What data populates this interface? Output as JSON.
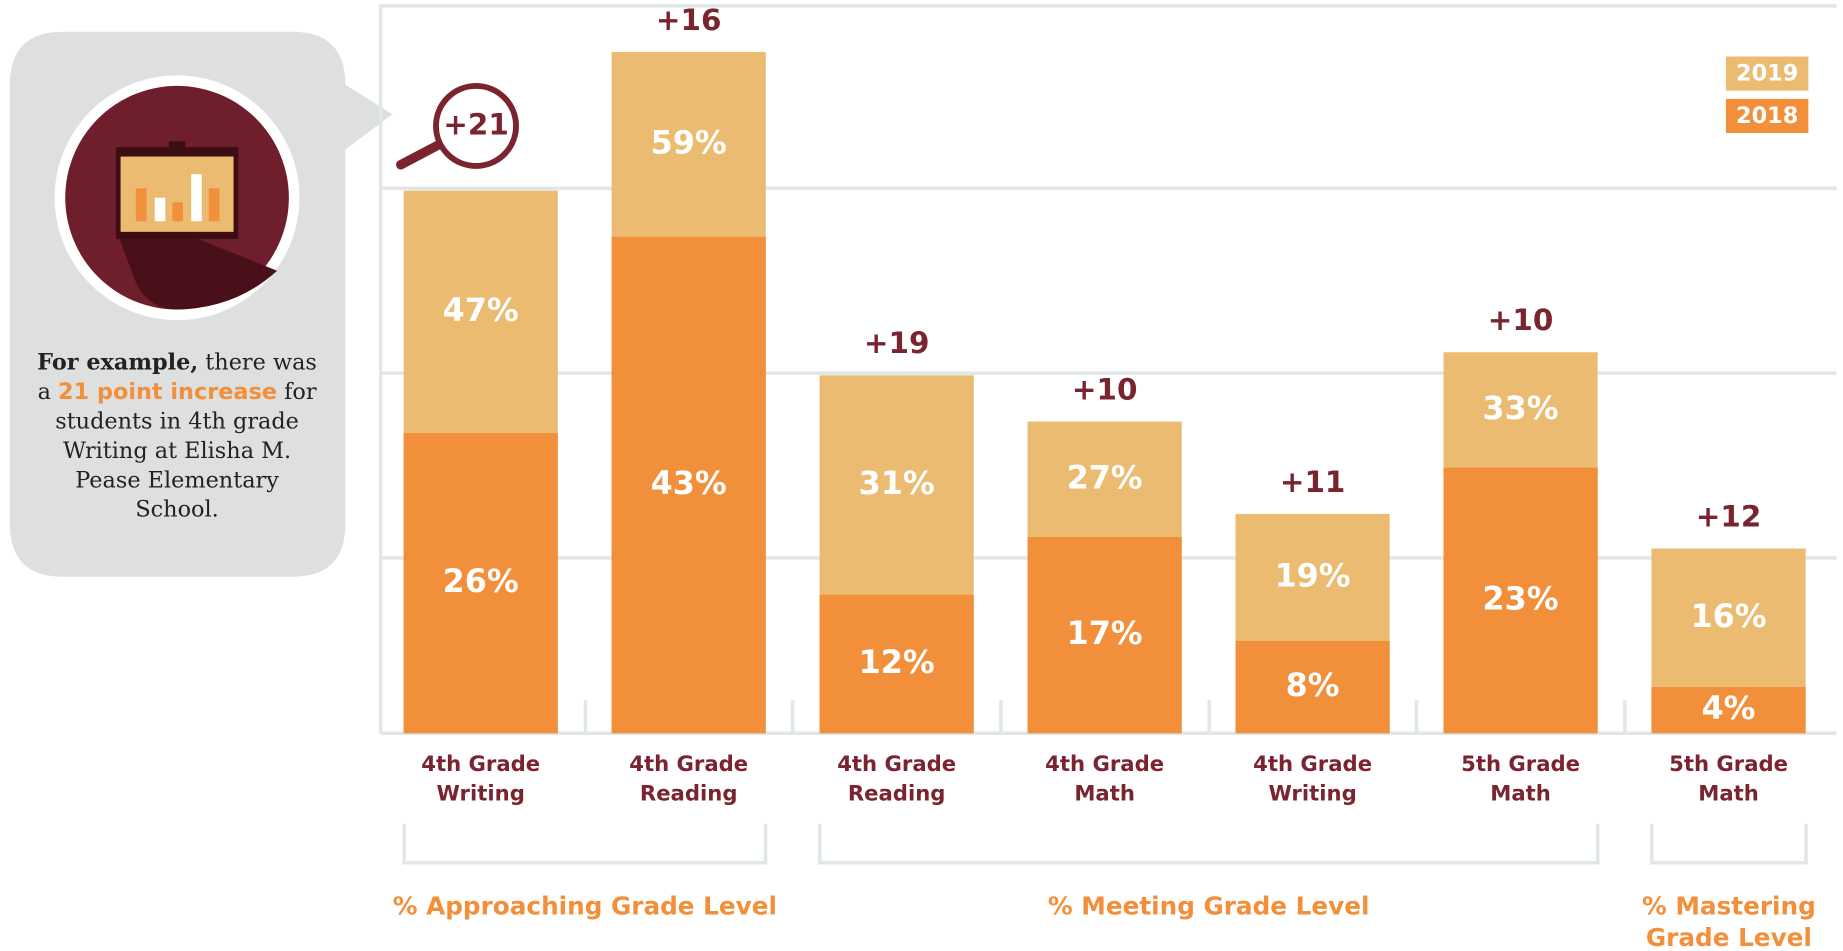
{
  "callout": {
    "bold": "For example,",
    "text1": " there was a ",
    "highlight": "21 point increase",
    "text2": " for students in 4th grade Writing at Elisha M. Pease Elementary School."
  },
  "chart_data": {
    "type": "overlap-bar",
    "categories": [
      [
        "4th Grade",
        "Writing"
      ],
      [
        "4th Grade",
        "Reading"
      ],
      [
        "4th Grade",
        "Reading"
      ],
      [
        "4th Grade",
        "Math"
      ],
      [
        "4th Grade",
        "Writing"
      ],
      [
        "5th Grade",
        "Math"
      ],
      [
        "5th Grade",
        "Math"
      ]
    ],
    "series": [
      {
        "name": "2019",
        "color": "#ecbb72",
        "values": [
          47,
          59,
          31,
          27,
          19,
          33,
          16
        ],
        "value_labels": [
          "47%",
          "59%",
          "31%",
          "27%",
          "19%",
          "33%",
          "16%"
        ]
      },
      {
        "name": "2018",
        "color": "#f28f3b",
        "values": [
          26,
          43,
          12,
          17,
          8,
          23,
          4
        ],
        "value_labels": [
          "26%",
          "43%",
          "12%",
          "17%",
          "8%",
          "23%",
          "4%"
        ]
      }
    ],
    "annotations": [
      "+21",
      "+16",
      "+19",
      "+10",
      "+11",
      "+10",
      "+12"
    ],
    "groups": [
      [
        "% Approaching Grade Level"
      ],
      [
        "% Meeting Grade Level"
      ],
      [
        "% Mastering",
        "Grade Level"
      ]
    ],
    "ylim": [
      0,
      63
    ]
  }
}
